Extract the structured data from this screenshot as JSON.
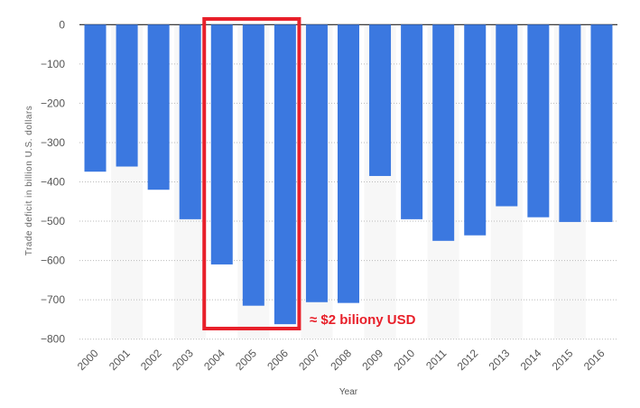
{
  "chart_data": {
    "type": "bar",
    "categories": [
      "2000",
      "2001",
      "2002",
      "2003",
      "2004",
      "2005",
      "2006",
      "2007",
      "2008",
      "2009",
      "2010",
      "2011",
      "2012",
      "2013",
      "2014",
      "2015",
      "2016"
    ],
    "values": [
      -374,
      -361,
      -420,
      -495,
      -610,
      -715,
      -762,
      -706,
      -708,
      -385,
      -495,
      -550,
      -536,
      -462,
      -490,
      -502,
      -502
    ],
    "title": "",
    "xlabel": "Year",
    "ylabel": "Trade deficit in billion U.S. dollars",
    "ylim": [
      -800,
      0
    ],
    "yticks": [
      0,
      -100,
      -200,
      -300,
      -400,
      -500,
      -600,
      -700,
      -800
    ],
    "grid": true,
    "bar_color": "#3b78e0",
    "annotation": {
      "text": "≈ $2 biliony USD",
      "highlighted_categories": [
        "2004",
        "2005",
        "2006"
      ],
      "color": "#e8202a"
    }
  }
}
